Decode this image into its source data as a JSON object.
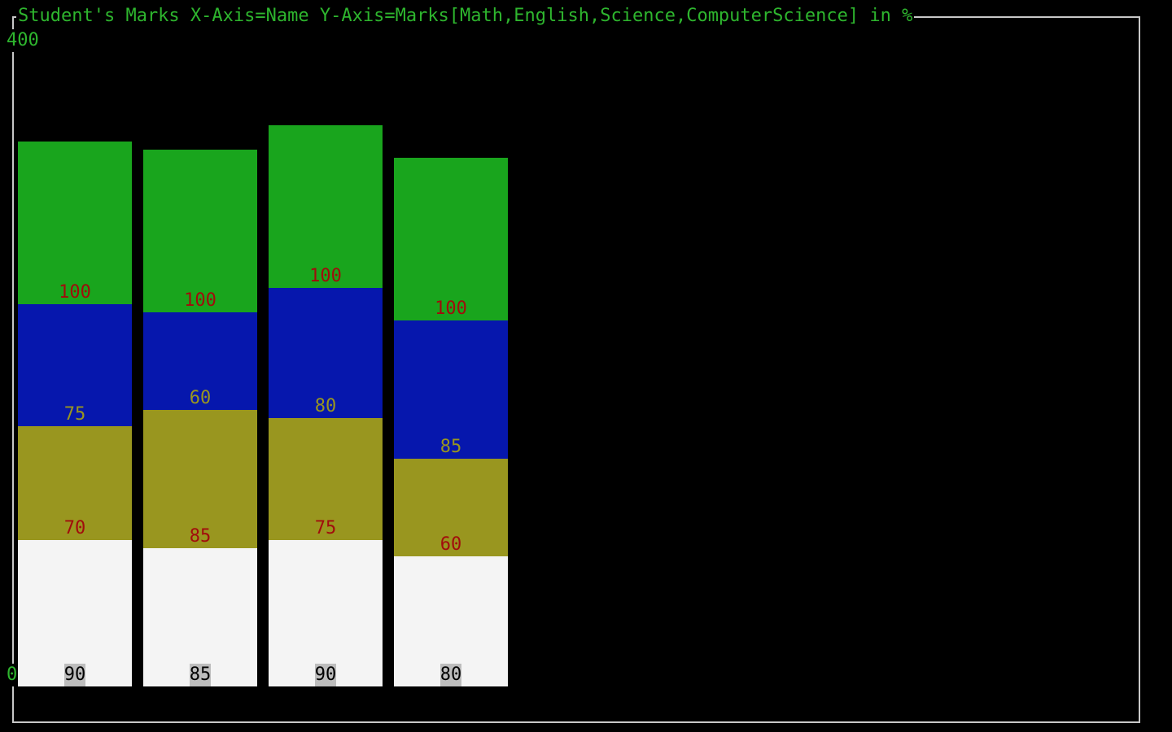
{
  "title": "Student's Marks X-Axis=Name Y-Axis=Marks[Math,English,Science,ComputerScience] in %",
  "y_axis": {
    "max_label": "400",
    "min_label": "0"
  },
  "chart_data": {
    "type": "bar",
    "stacked": true,
    "title": "Student's Marks X-Axis=Name Y-Axis=Marks[Math,English,Science,ComputerScience] in %",
    "xlabel": "",
    "ylabel": "",
    "ylim": [
      0,
      400
    ],
    "grid": false,
    "categories": [
      "",
      "",
      "",
      ""
    ],
    "series": [
      {
        "values": [
          90,
          85,
          90,
          80
        ],
        "color": "#f4f4f4",
        "label_color": "#000000",
        "label_bg": "#bdbdbd"
      },
      {
        "values": [
          70,
          85,
          75,
          60
        ],
        "color": "#99961f",
        "label_color": "#a10c0c",
        "label_bg": ""
      },
      {
        "values": [
          75,
          60,
          80,
          85
        ],
        "color": "#0617ad",
        "label_color": "#99961f",
        "label_bg": ""
      },
      {
        "values": [
          100,
          100,
          100,
          100
        ],
        "color": "#19a51d",
        "label_color": "#a10c0c",
        "label_bg": ""
      }
    ]
  }
}
